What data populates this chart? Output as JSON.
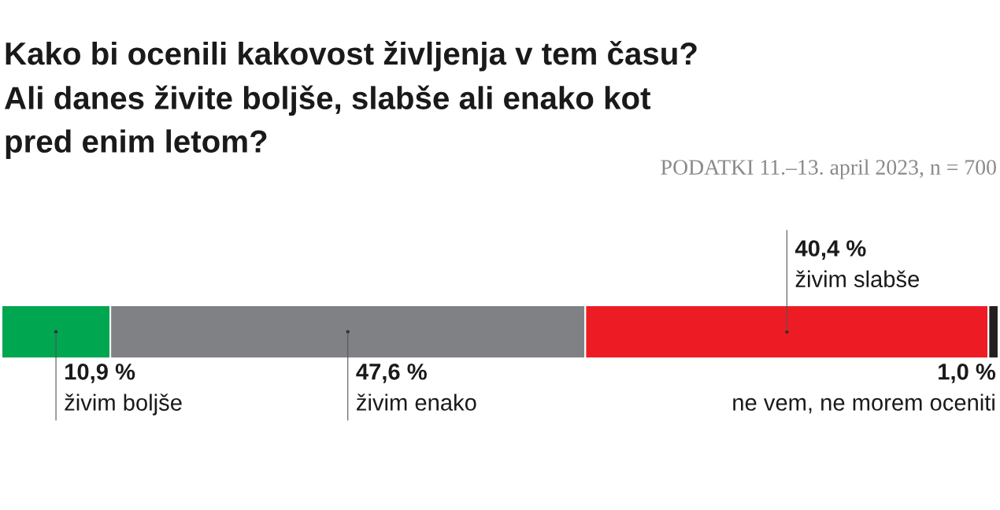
{
  "chart_data": {
    "type": "bar",
    "orientation": "horizontal",
    "stacked": true,
    "tick_labels": false,
    "title": "Kako bi ocenili kakovost življenja v tem času?\nAli danes živite boljše, slabše ali enako kot\npred enim letom?",
    "annotations": [
      "PODATKI 11.–13. april 2023, n = 700"
    ],
    "categories": [
      null
    ],
    "series": [
      {
        "name": "živim boljše",
        "color": "#00a650",
        "values": [
          10.9
        ],
        "value_labels": [
          "10,9 %"
        ]
      },
      {
        "name": "živim enako",
        "color": "#808184",
        "values": [
          47.6
        ],
        "value_labels": [
          "47,6 %"
        ]
      },
      {
        "name": "živim slabše",
        "color": "#ed1c24",
        "values": [
          40.4
        ],
        "value_labels": [
          "40,4 %"
        ]
      },
      {
        "name": "ne vem, ne morem oceniti",
        "color": "#231f20",
        "values": [
          1.0
        ],
        "value_labels": [
          "1,0 %"
        ]
      }
    ]
  }
}
